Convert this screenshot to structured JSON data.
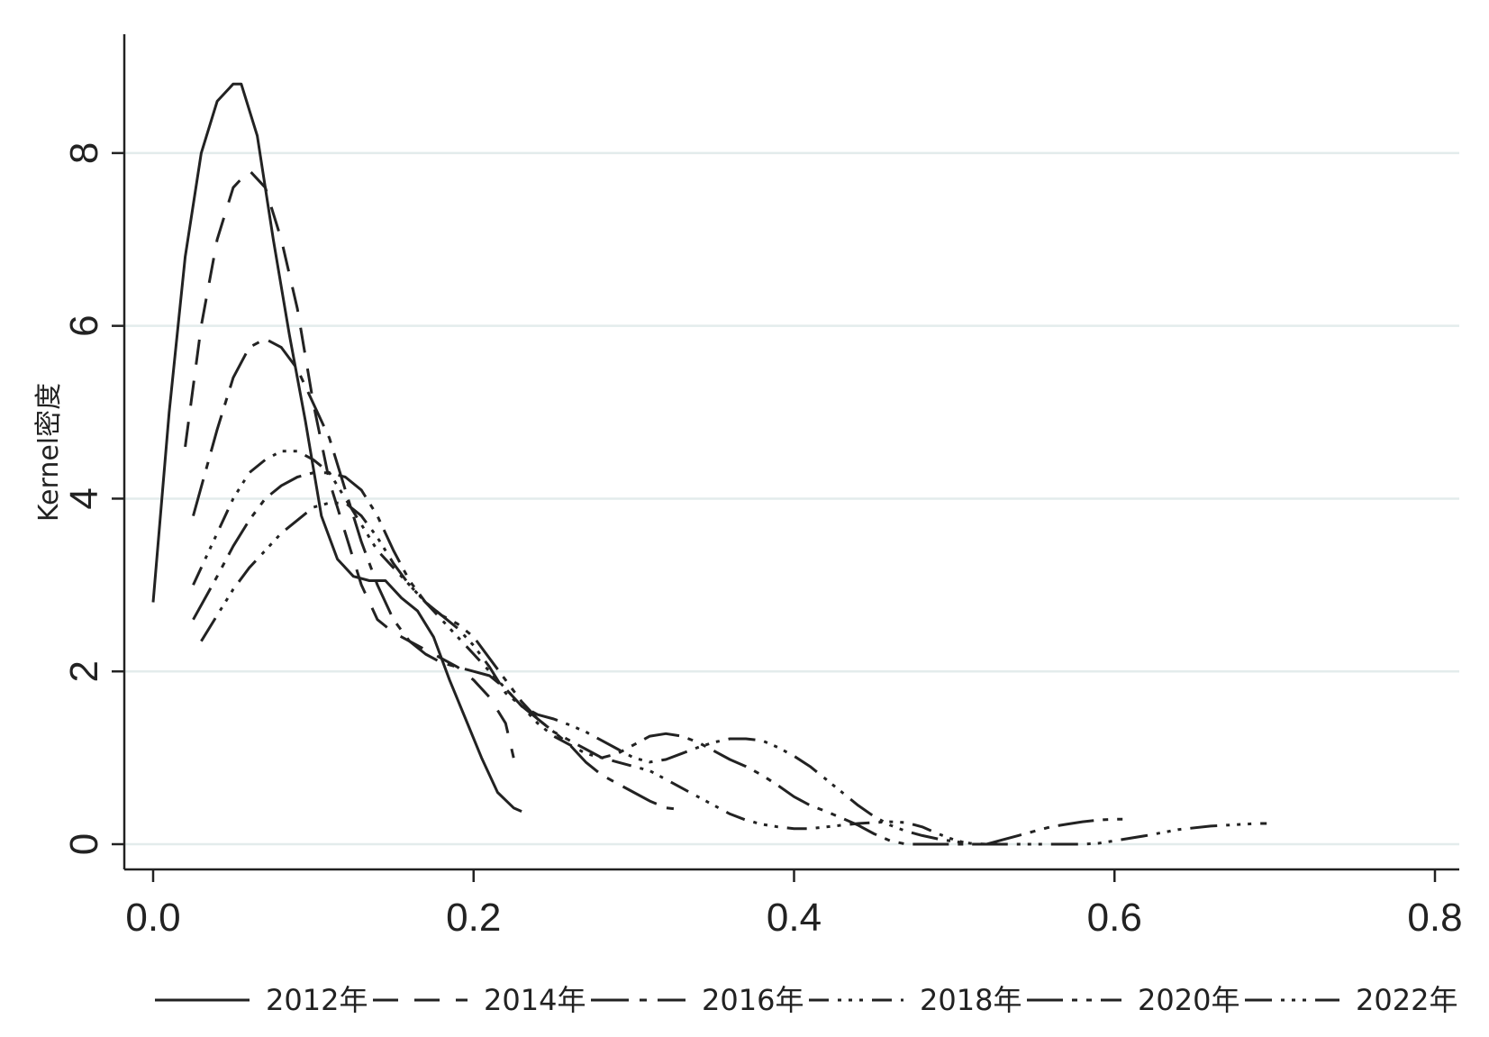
{
  "chart_data": {
    "type": "line",
    "title": "",
    "xlabel": "",
    "ylabel": "Kernel密度",
    "xlim": [
      0,
      0.8
    ],
    "ylim": [
      0,
      9
    ],
    "x_ticks": [
      "0.0",
      "0.2",
      "0.4",
      "0.6",
      "0.8"
    ],
    "y_ticks": [
      "0",
      "2",
      "4",
      "6",
      "8"
    ],
    "grid": true,
    "legend_position": "bottom",
    "series": [
      {
        "name": "2012年",
        "dash": "none",
        "points": [
          [
            0.0,
            2.8
          ],
          [
            0.01,
            5.0
          ],
          [
            0.02,
            6.8
          ],
          [
            0.03,
            8.0
          ],
          [
            0.04,
            8.6
          ],
          [
            0.05,
            8.8
          ],
          [
            0.055,
            8.8
          ],
          [
            0.065,
            8.2
          ],
          [
            0.075,
            7.0
          ],
          [
            0.085,
            5.9
          ],
          [
            0.095,
            4.9
          ],
          [
            0.105,
            3.8
          ],
          [
            0.115,
            3.3
          ],
          [
            0.125,
            3.1
          ],
          [
            0.135,
            3.05
          ],
          [
            0.145,
            3.05
          ],
          [
            0.155,
            2.85
          ],
          [
            0.165,
            2.7
          ],
          [
            0.175,
            2.4
          ],
          [
            0.185,
            1.9
          ],
          [
            0.195,
            1.45
          ],
          [
            0.205,
            1.0
          ],
          [
            0.215,
            0.6
          ],
          [
            0.225,
            0.42
          ],
          [
            0.23,
            0.38
          ]
        ]
      },
      {
        "name": "2014年",
        "dash": "28 18",
        "points": [
          [
            0.02,
            4.6
          ],
          [
            0.03,
            6.0
          ],
          [
            0.04,
            7.0
          ],
          [
            0.05,
            7.6
          ],
          [
            0.06,
            7.8
          ],
          [
            0.07,
            7.6
          ],
          [
            0.08,
            7.0
          ],
          [
            0.09,
            6.2
          ],
          [
            0.1,
            5.1
          ],
          [
            0.11,
            4.2
          ],
          [
            0.12,
            3.6
          ],
          [
            0.13,
            3.0
          ],
          [
            0.14,
            2.6
          ],
          [
            0.15,
            2.45
          ],
          [
            0.16,
            2.35
          ],
          [
            0.17,
            2.25
          ],
          [
            0.18,
            2.15
          ],
          [
            0.19,
            2.05
          ],
          [
            0.2,
            1.9
          ],
          [
            0.21,
            1.7
          ],
          [
            0.22,
            1.4
          ],
          [
            0.225,
            1.0
          ]
        ]
      },
      {
        "name": "2016年",
        "dash": "42 12 8 12",
        "points": [
          [
            0.025,
            3.8
          ],
          [
            0.04,
            4.8
          ],
          [
            0.05,
            5.4
          ],
          [
            0.06,
            5.75
          ],
          [
            0.07,
            5.85
          ],
          [
            0.08,
            5.75
          ],
          [
            0.09,
            5.5
          ],
          [
            0.1,
            5.1
          ],
          [
            0.11,
            4.7
          ],
          [
            0.12,
            4.1
          ],
          [
            0.13,
            3.5
          ],
          [
            0.14,
            3.0
          ],
          [
            0.15,
            2.6
          ],
          [
            0.16,
            2.35
          ],
          [
            0.17,
            2.2
          ],
          [
            0.18,
            2.1
          ],
          [
            0.19,
            2.05
          ],
          [
            0.2,
            2.0
          ],
          [
            0.21,
            1.95
          ],
          [
            0.22,
            1.8
          ],
          [
            0.23,
            1.6
          ],
          [
            0.24,
            1.45
          ],
          [
            0.25,
            1.3
          ],
          [
            0.26,
            1.15
          ],
          [
            0.27,
            0.95
          ],
          [
            0.28,
            0.8
          ],
          [
            0.29,
            0.7
          ],
          [
            0.3,
            0.6
          ],
          [
            0.31,
            0.5
          ],
          [
            0.32,
            0.42
          ],
          [
            0.33,
            0.4
          ]
        ]
      },
      {
        "name": "2018年",
        "dash": "22 10 4 8 4 8 4 10",
        "points": [
          [
            0.025,
            3.0
          ],
          [
            0.04,
            3.6
          ],
          [
            0.05,
            4.0
          ],
          [
            0.06,
            4.3
          ],
          [
            0.07,
            4.45
          ],
          [
            0.08,
            4.55
          ],
          [
            0.09,
            4.55
          ],
          [
            0.1,
            4.45
          ],
          [
            0.11,
            4.3
          ],
          [
            0.12,
            4.0
          ],
          [
            0.13,
            3.7
          ],
          [
            0.14,
            3.4
          ],
          [
            0.15,
            3.2
          ],
          [
            0.16,
            3.0
          ],
          [
            0.17,
            2.8
          ],
          [
            0.18,
            2.6
          ],
          [
            0.19,
            2.4
          ],
          [
            0.2,
            2.2
          ],
          [
            0.21,
            2.0
          ],
          [
            0.22,
            1.8
          ],
          [
            0.23,
            1.6
          ],
          [
            0.24,
            1.4
          ],
          [
            0.25,
            1.25
          ],
          [
            0.26,
            1.15
          ],
          [
            0.27,
            1.05
          ],
          [
            0.28,
            1.0
          ],
          [
            0.29,
            0.95
          ],
          [
            0.3,
            0.9
          ],
          [
            0.31,
            0.85
          ],
          [
            0.32,
            0.75
          ],
          [
            0.33,
            0.65
          ],
          [
            0.34,
            0.55
          ],
          [
            0.35,
            0.45
          ],
          [
            0.36,
            0.35
          ],
          [
            0.37,
            0.28
          ],
          [
            0.38,
            0.23
          ],
          [
            0.39,
            0.2
          ],
          [
            0.4,
            0.18
          ],
          [
            0.41,
            0.18
          ],
          [
            0.42,
            0.2
          ],
          [
            0.43,
            0.22
          ],
          [
            0.44,
            0.24
          ],
          [
            0.45,
            0.25
          ],
          [
            0.46,
            0.26
          ],
          [
            0.47,
            0.25
          ],
          [
            0.48,
            0.2
          ],
          [
            0.49,
            0.12
          ],
          [
            0.5,
            0.05
          ],
          [
            0.51,
            0.0
          ],
          [
            0.52,
            0.0
          ],
          [
            0.53,
            0.0
          ]
        ]
      },
      {
        "name": "2020年",
        "dash": "40 10 6 10 6 10",
        "points": [
          [
            0.025,
            2.6
          ],
          [
            0.04,
            3.1
          ],
          [
            0.05,
            3.45
          ],
          [
            0.06,
            3.75
          ],
          [
            0.07,
            4.0
          ],
          [
            0.08,
            4.15
          ],
          [
            0.09,
            4.25
          ],
          [
            0.1,
            4.3
          ],
          [
            0.11,
            4.3
          ],
          [
            0.12,
            4.25
          ],
          [
            0.13,
            4.1
          ],
          [
            0.14,
            3.8
          ],
          [
            0.15,
            3.4
          ],
          [
            0.16,
            3.05
          ],
          [
            0.17,
            2.8
          ],
          [
            0.18,
            2.65
          ],
          [
            0.19,
            2.55
          ],
          [
            0.2,
            2.4
          ],
          [
            0.21,
            2.15
          ],
          [
            0.22,
            1.9
          ],
          [
            0.23,
            1.65
          ],
          [
            0.24,
            1.45
          ],
          [
            0.25,
            1.3
          ],
          [
            0.26,
            1.2
          ],
          [
            0.27,
            1.1
          ],
          [
            0.28,
            1.0
          ],
          [
            0.29,
            1.05
          ],
          [
            0.3,
            1.15
          ],
          [
            0.31,
            1.25
          ],
          [
            0.32,
            1.28
          ],
          [
            0.33,
            1.25
          ],
          [
            0.34,
            1.18
          ],
          [
            0.35,
            1.08
          ],
          [
            0.36,
            0.98
          ],
          [
            0.37,
            0.9
          ],
          [
            0.38,
            0.8
          ],
          [
            0.39,
            0.68
          ],
          [
            0.4,
            0.55
          ],
          [
            0.41,
            0.45
          ],
          [
            0.42,
            0.38
          ],
          [
            0.43,
            0.3
          ],
          [
            0.44,
            0.22
          ],
          [
            0.45,
            0.12
          ],
          [
            0.46,
            0.04
          ],
          [
            0.47,
            0.0
          ],
          [
            0.48,
            0.0
          ],
          [
            0.49,
            0.0
          ],
          [
            0.5,
            0.0
          ],
          [
            0.51,
            0.0
          ],
          [
            0.52,
            0.0
          ],
          [
            0.53,
            0.05
          ],
          [
            0.54,
            0.1
          ],
          [
            0.55,
            0.15
          ],
          [
            0.56,
            0.2
          ],
          [
            0.57,
            0.23
          ],
          [
            0.58,
            0.26
          ],
          [
            0.59,
            0.28
          ],
          [
            0.6,
            0.29
          ],
          [
            0.61,
            0.29
          ]
        ]
      },
      {
        "name": "2022年",
        "dash": "30 10 4 8 4 8 4 10",
        "points": [
          [
            0.03,
            2.35
          ],
          [
            0.04,
            2.65
          ],
          [
            0.05,
            2.95
          ],
          [
            0.06,
            3.2
          ],
          [
            0.07,
            3.4
          ],
          [
            0.08,
            3.6
          ],
          [
            0.09,
            3.75
          ],
          [
            0.1,
            3.9
          ],
          [
            0.11,
            3.95
          ],
          [
            0.12,
            3.95
          ],
          [
            0.13,
            3.8
          ],
          [
            0.14,
            3.55
          ],
          [
            0.15,
            3.25
          ],
          [
            0.16,
            3.0
          ],
          [
            0.17,
            2.8
          ],
          [
            0.18,
            2.65
          ],
          [
            0.19,
            2.5
          ],
          [
            0.2,
            2.3
          ],
          [
            0.21,
            2.05
          ],
          [
            0.22,
            1.75
          ],
          [
            0.23,
            1.6
          ],
          [
            0.24,
            1.5
          ],
          [
            0.25,
            1.45
          ],
          [
            0.26,
            1.38
          ],
          [
            0.27,
            1.3
          ],
          [
            0.28,
            1.2
          ],
          [
            0.29,
            1.1
          ],
          [
            0.3,
            1.0
          ],
          [
            0.31,
            0.95
          ],
          [
            0.32,
            0.98
          ],
          [
            0.33,
            1.05
          ],
          [
            0.34,
            1.12
          ],
          [
            0.35,
            1.18
          ],
          [
            0.36,
            1.22
          ],
          [
            0.37,
            1.22
          ],
          [
            0.38,
            1.2
          ],
          [
            0.39,
            1.12
          ],
          [
            0.4,
            1.02
          ],
          [
            0.41,
            0.9
          ],
          [
            0.42,
            0.75
          ],
          [
            0.43,
            0.6
          ],
          [
            0.44,
            0.45
          ],
          [
            0.45,
            0.32
          ],
          [
            0.46,
            0.22
          ],
          [
            0.47,
            0.15
          ],
          [
            0.48,
            0.1
          ],
          [
            0.49,
            0.06
          ],
          [
            0.5,
            0.03
          ],
          [
            0.51,
            0.01
          ],
          [
            0.52,
            0.0
          ],
          [
            0.54,
            0.0
          ],
          [
            0.56,
            0.0
          ],
          [
            0.58,
            0.0
          ],
          [
            0.59,
            0.01
          ],
          [
            0.6,
            0.04
          ],
          [
            0.62,
            0.1
          ],
          [
            0.64,
            0.17
          ],
          [
            0.66,
            0.21
          ],
          [
            0.68,
            0.23
          ],
          [
            0.69,
            0.24
          ],
          [
            0.695,
            0.24
          ]
        ]
      }
    ]
  }
}
